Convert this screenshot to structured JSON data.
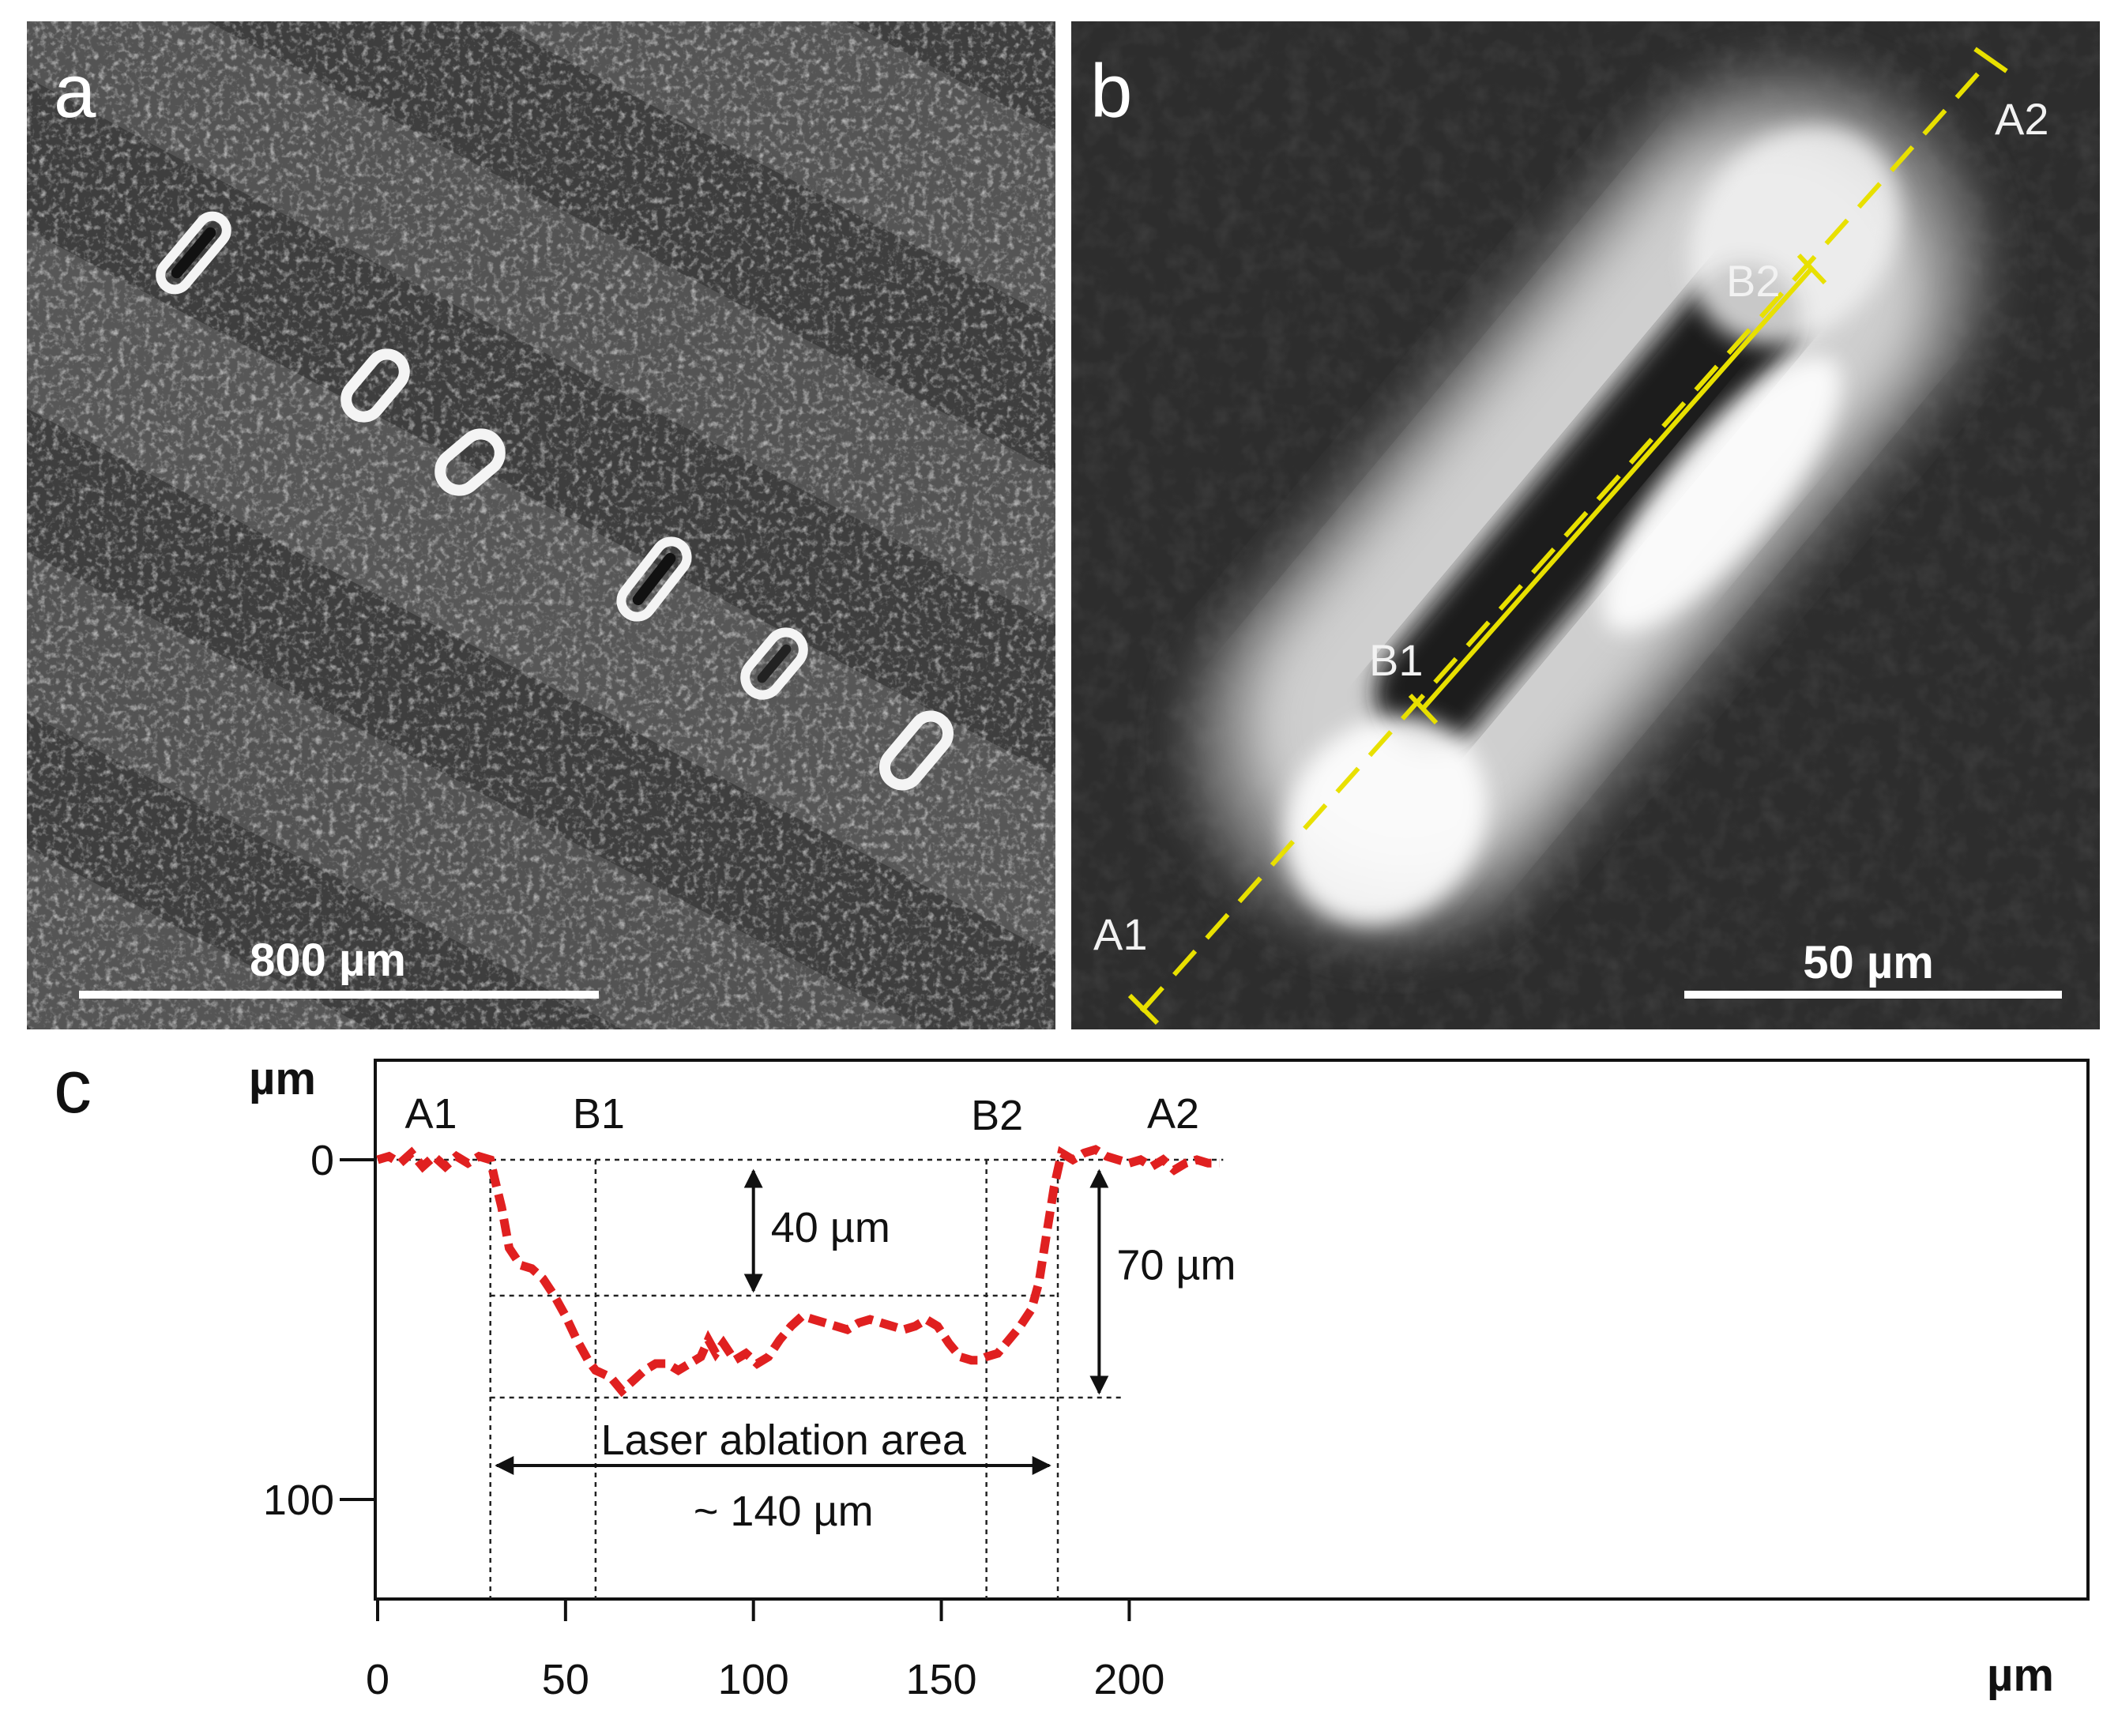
{
  "panels": {
    "a": {
      "letter": "a",
      "scale_bar_label": "800 µm"
    },
    "b": {
      "letter": "b",
      "scale_bar_label": "50 µm",
      "line_color": "#e8e000",
      "points": {
        "A1": "A1",
        "A2": "A2",
        "B1": "B1",
        "B2": "B2"
      }
    },
    "c": {
      "letter": "c",
      "y_unit": "µm",
      "x_unit": "µm",
      "point_labels": {
        "A1": "A1",
        "B1": "B1",
        "B2": "B2",
        "A2": "A2"
      },
      "depth_label_1": "40 µm",
      "depth_label_2": "70 µm",
      "area_label": "Laser ablation area",
      "area_width_label": "~ 140 µm"
    }
  },
  "chart_data": {
    "type": "line",
    "series": [
      {
        "color": "#e02020",
        "x": [
          0,
          3,
          6,
          9,
          12,
          15,
          18,
          21,
          24,
          27,
          30,
          31,
          33,
          35,
          38,
          41,
          44,
          47,
          50,
          53,
          56,
          58,
          60,
          62,
          65,
          68,
          71,
          74,
          77,
          80,
          83,
          86,
          88,
          90,
          92,
          95,
          98,
          101,
          104,
          107,
          110,
          113,
          116,
          119,
          122,
          125,
          128,
          131,
          134,
          137,
          140,
          143,
          146,
          149,
          152,
          155,
          158,
          160,
          162,
          165,
          168,
          171,
          174,
          176,
          178,
          180,
          182,
          185,
          188,
          191,
          194,
          197,
          200,
          203,
          206,
          209,
          212,
          215,
          218,
          221,
          224
        ],
        "y": [
          0,
          -1,
          1,
          -2,
          2,
          -1,
          2,
          -1,
          1,
          -1,
          0,
          5,
          14,
          26,
          31,
          32,
          35,
          40,
          46,
          53,
          59,
          62,
          63,
          64,
          68,
          65,
          62,
          60,
          60,
          62,
          60,
          58,
          53,
          57,
          54,
          59,
          57,
          60,
          58,
          53,
          49,
          46,
          47,
          48,
          49,
          50,
          48,
          47,
          48,
          49,
          50,
          49,
          47,
          49,
          54,
          58,
          59,
          59,
          58,
          57,
          53,
          49,
          44,
          36,
          22,
          8,
          -2,
          0,
          -2,
          -3,
          -1,
          0,
          1,
          0,
          2,
          0,
          3,
          1,
          0,
          1,
          1
        ]
      }
    ],
    "xlim": [
      0,
      225
    ],
    "ylim": [
      130,
      -5
    ],
    "x_ticks": [
      0,
      50,
      100,
      150,
      200
    ],
    "y_ticks": [
      0,
      100
    ],
    "guide_x": [
      30,
      58,
      162,
      181
    ],
    "guide_y": [
      0,
      40,
      70
    ],
    "area_span": [
      30,
      180
    ],
    "depth_arrows": [
      {
        "x": 100,
        "from": 0,
        "to": 40
      },
      {
        "x": 192,
        "from": 0,
        "to": 70
      }
    ],
    "annotation_x": {
      "A1": 10,
      "B1": 58,
      "B2": 164,
      "A2": 210
    }
  }
}
